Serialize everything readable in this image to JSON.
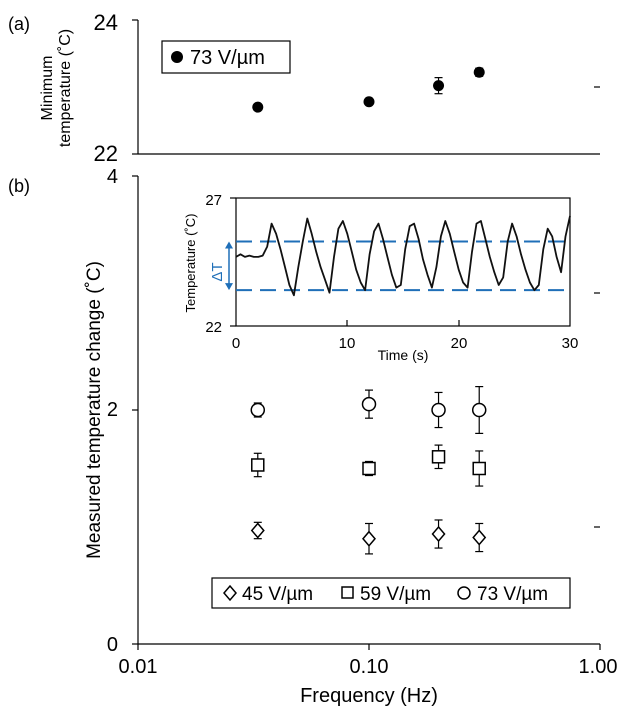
{
  "chart_data": [
    {
      "panel": "(a)",
      "type": "scatter",
      "ylabel": [
        "Minimum",
        "temperature (˚C)"
      ],
      "ylim": [
        22,
        24
      ],
      "yticks": [
        "22",
        "24"
      ],
      "xscale": "log",
      "xlim": [
        0.01,
        1.0
      ],
      "legend": "73 V/µm",
      "series": [
        {
          "name": "73 V/µm",
          "marker": "filled-circle",
          "x": [
            0.033,
            0.1,
            0.2,
            0.3
          ],
          "y": [
            22.7,
            22.78,
            23.02,
            23.22
          ],
          "err": [
            0.04,
            0.04,
            0.12,
            0.06
          ]
        }
      ]
    },
    {
      "panel": "(b)",
      "type": "scatter",
      "xlabel": "Frequency (Hz)",
      "ylabel": "Measured temperature change (˚C)",
      "xscale": "log",
      "xlim": [
        0.01,
        1.0
      ],
      "ylim": [
        0,
        4
      ],
      "xticks": [
        "0.01",
        "0.10",
        "1.00"
      ],
      "yticks": [
        "0",
        "2",
        "4"
      ],
      "legend_position": "bottom",
      "series": [
        {
          "name": "45 V/µm",
          "marker": "diamond",
          "x": [
            0.033,
            0.1,
            0.2,
            0.3
          ],
          "y": [
            0.97,
            0.9,
            0.94,
            0.91
          ],
          "err": [
            0.07,
            0.13,
            0.12,
            0.12
          ]
        },
        {
          "name": "59 V/µm",
          "marker": "square",
          "x": [
            0.033,
            0.1,
            0.2,
            0.3
          ],
          "y": [
            1.53,
            1.5,
            1.6,
            1.5
          ],
          "err": [
            0.1,
            0.06,
            0.1,
            0.15
          ]
        },
        {
          "name": "73 V/µm",
          "marker": "open-circle",
          "x": [
            0.033,
            0.1,
            0.2,
            0.3
          ],
          "y": [
            2.0,
            2.05,
            2.0,
            2.0
          ],
          "err": [
            0.06,
            0.12,
            0.15,
            0.2
          ]
        }
      ]
    },
    {
      "panel": "inset",
      "type": "line",
      "xlabel": "Time (s)",
      "ylabel": "Temperature (˚C)",
      "xlim": [
        0,
        30
      ],
      "ylim": [
        22,
        27
      ],
      "xticks": [
        "0",
        "10",
        "20",
        "30"
      ],
      "yticks": [
        "22",
        "27"
      ],
      "annotation": "ΔT",
      "reference_lines": [
        25.3,
        23.4
      ],
      "x": [
        0,
        0.4,
        0.8,
        1.2,
        1.6,
        2.0,
        2.4,
        2.8,
        3.2,
        3.6,
        4.0,
        4.4,
        4.8,
        5.2,
        5.6,
        6.0,
        6.4,
        6.8,
        7.2,
        7.6,
        8.0,
        8.4,
        8.8,
        9.2,
        9.6,
        10.0,
        10.4,
        10.8,
        11.2,
        11.6,
        12.0,
        12.4,
        12.8,
        13.2,
        13.6,
        14.0,
        14.4,
        14.8,
        15.2,
        15.6,
        16.0,
        16.4,
        16.8,
        17.2,
        17.6,
        18.0,
        18.4,
        18.8,
        19.2,
        19.6,
        20.0,
        20.4,
        20.8,
        21.2,
        21.6,
        22.0,
        22.4,
        22.8,
        23.2,
        23.6,
        24.0,
        24.4,
        24.8,
        25.2,
        25.6,
        26.0,
        26.4,
        26.8,
        27.2,
        27.6,
        28.0,
        28.4,
        28.8,
        29.2,
        29.6,
        30.0
      ],
      "y": [
        24.7,
        24.8,
        24.7,
        24.75,
        24.7,
        24.7,
        24.75,
        25.1,
        26.0,
        25.6,
        25.0,
        24.3,
        23.6,
        23.2,
        24.3,
        25.3,
        26.2,
        25.6,
        24.9,
        24.3,
        23.8,
        23.3,
        24.7,
        25.8,
        26.1,
        25.6,
        24.9,
        24.2,
        23.7,
        23.4,
        24.8,
        25.7,
        26.0,
        25.4,
        24.7,
        24.0,
        23.5,
        23.6,
        25.0,
        25.9,
        26.0,
        25.4,
        24.6,
        24.0,
        23.5,
        24.3,
        25.5,
        26.1,
        25.6,
        24.9,
        24.2,
        23.7,
        23.5,
        24.9,
        26.0,
        26.1,
        25.4,
        24.7,
        24.1,
        23.6,
        23.9,
        25.3,
        26.0,
        25.5,
        24.8,
        24.2,
        23.7,
        23.4,
        23.6,
        25.0,
        25.8,
        25.5,
        24.7,
        24.1,
        25.5,
        26.3
      ]
    }
  ]
}
